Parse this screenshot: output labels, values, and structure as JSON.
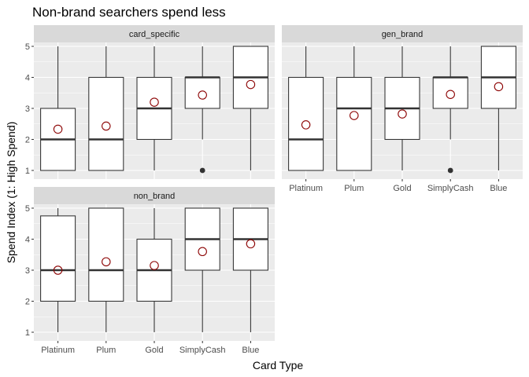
{
  "chart_data": {
    "type": "boxplot",
    "title": "Non-brand searchers spend less",
    "xlabel": "Card Type",
    "ylabel": "Spend Index (1: High Spend)",
    "categories": [
      "Platinum",
      "Plum",
      "Gold",
      "SimplyCash",
      "Blue"
    ],
    "yticks": [
      "1",
      "2",
      "3",
      "4",
      "5"
    ],
    "ylim": [
      1,
      5
    ],
    "colors": {
      "mean_marker": "#8b0000",
      "box_line": "#333333",
      "panel": "#ebebeb",
      "strip": "#d9d9d9"
    },
    "panels": [
      {
        "name": "card_specific",
        "boxes": [
          {
            "category": "Platinum",
            "lower": 1,
            "q1": 1,
            "median": 2,
            "q3": 3,
            "upper": 5,
            "mean": 2.33,
            "outliers": []
          },
          {
            "category": "Plum",
            "lower": 1,
            "q1": 1,
            "median": 2,
            "q3": 4,
            "upper": 5,
            "mean": 2.43,
            "outliers": []
          },
          {
            "category": "Gold",
            "lower": 1,
            "q1": 2,
            "median": 3,
            "q3": 4,
            "upper": 5,
            "mean": 3.2,
            "outliers": []
          },
          {
            "category": "SimplyCash",
            "lower": 2,
            "q1": 3,
            "median": 4,
            "q3": 4,
            "upper": 5,
            "mean": 3.43,
            "outliers": [
              1
            ]
          },
          {
            "category": "Blue",
            "lower": 1,
            "q1": 3,
            "median": 4,
            "q3": 5,
            "upper": 5,
            "mean": 3.77,
            "outliers": []
          }
        ]
      },
      {
        "name": "gen_brand",
        "boxes": [
          {
            "category": "Platinum",
            "lower": 1,
            "q1": 1,
            "median": 2,
            "q3": 4,
            "upper": 5,
            "mean": 2.47,
            "outliers": []
          },
          {
            "category": "Plum",
            "lower": 1,
            "q1": 1,
            "median": 3,
            "q3": 4,
            "upper": 5,
            "mean": 2.77,
            "outliers": []
          },
          {
            "category": "Gold",
            "lower": 1,
            "q1": 2,
            "median": 3,
            "q3": 4,
            "upper": 5,
            "mean": 2.82,
            "outliers": []
          },
          {
            "category": "SimplyCash",
            "lower": 2,
            "q1": 3,
            "median": 4,
            "q3": 4,
            "upper": 5,
            "mean": 3.45,
            "outliers": [
              1
            ]
          },
          {
            "category": "Blue",
            "lower": 1,
            "q1": 3,
            "median": 4,
            "q3": 5,
            "upper": 5,
            "mean": 3.7,
            "outliers": []
          }
        ]
      },
      {
        "name": "non_brand",
        "boxes": [
          {
            "category": "Platinum",
            "lower": 1,
            "q1": 2,
            "median": 3,
            "q3": 4.75,
            "upper": 5,
            "mean": 3.0,
            "outliers": []
          },
          {
            "category": "Plum",
            "lower": 1,
            "q1": 2,
            "median": 3,
            "q3": 5,
            "upper": 5,
            "mean": 3.27,
            "outliers": []
          },
          {
            "category": "Gold",
            "lower": 1,
            "q1": 2,
            "median": 3,
            "q3": 4,
            "upper": 5,
            "mean": 3.15,
            "outliers": []
          },
          {
            "category": "SimplyCash",
            "lower": 1,
            "q1": 3,
            "median": 4,
            "q3": 5,
            "upper": 5,
            "mean": 3.6,
            "outliers": []
          },
          {
            "category": "Blue",
            "lower": 1,
            "q1": 3,
            "median": 4,
            "q3": 5,
            "upper": 5,
            "mean": 3.85,
            "outliers": []
          }
        ]
      }
    ]
  }
}
